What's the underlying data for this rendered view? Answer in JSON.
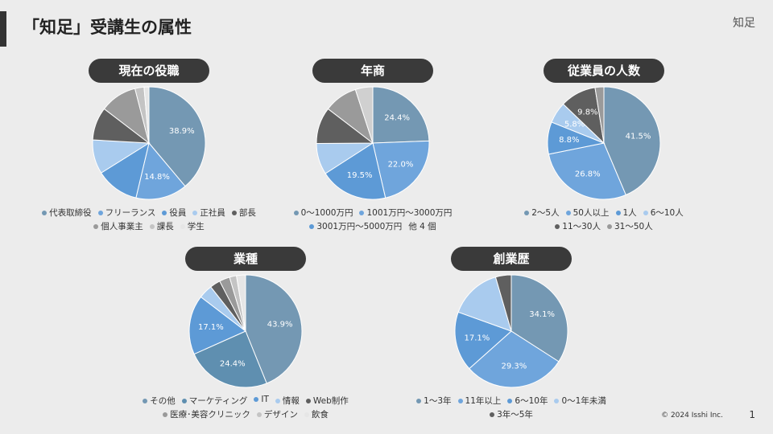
{
  "slide": {
    "title": "「知足」受講生の属性",
    "logo": "知足",
    "copyright": "© 2024 Isshi Inc.",
    "page": "1"
  },
  "chart_data": [
    {
      "type": "pie",
      "title": "現在の役職",
      "categories": [
        "代表取締役",
        "フリーランス",
        "役員",
        "正社員",
        "部長",
        "個人事業主",
        "課長",
        "学生"
      ],
      "values": [
        38.9,
        14.8,
        12.4,
        9.8,
        9.5,
        10.6,
        2.6,
        1.4
      ],
      "value_labels": [
        "38.9%",
        "14.8%",
        null,
        null,
        null,
        null,
        null,
        null
      ],
      "colors": [
        "#7498b3",
        "#6fa5dc",
        "#5d9ad6",
        "#a9cbee",
        "#5f5f5f",
        "#9a9a9a",
        "#c4c4c4",
        "#e6e6e6"
      ]
    },
    {
      "type": "pie",
      "title": "年商",
      "categories": [
        "0〜1000万円",
        "1001万円〜3000万円",
        "3001万円〜5000万円",
        null,
        null,
        null,
        null
      ],
      "values": [
        24.4,
        22.0,
        19.5,
        9.0,
        10.5,
        9.6,
        5.0
      ],
      "value_labels": [
        "24.4%",
        "22.0%",
        "19.5%",
        null,
        null,
        null,
        null
      ],
      "legend_more": "他 4 個",
      "colors": [
        "#7498b3",
        "#6fa5dc",
        "#5d9ad6",
        "#a9cbee",
        "#5f5f5f",
        "#9a9a9a",
        "#d0d0d0"
      ]
    },
    {
      "type": "pie",
      "title": "従業員の人数",
      "categories": [
        "2〜5人",
        "50人以上",
        "1人",
        "6〜10人",
        "11〜30人",
        "31〜50人"
      ],
      "values": [
        41.5,
        26.8,
        8.8,
        5.8,
        9.8,
        2.4
      ],
      "value_labels": [
        "41.5%",
        "26.8%",
        "8.8%",
        "5.8%",
        "9.8%",
        null
      ],
      "colors": [
        "#7498b3",
        "#6fa5dc",
        "#5d9ad6",
        "#a9cbee",
        "#5f5f5f",
        "#9a9a9a"
      ]
    },
    {
      "type": "pie",
      "title": "業種",
      "categories": [
        "その他",
        "マーケティング",
        "IT",
        "情報",
        "Web制作",
        "医療･美容クリニック",
        "デザイン",
        "飲食"
      ],
      "values": [
        43.9,
        24.4,
        17.1,
        4.0,
        3.0,
        3.0,
        2.0,
        2.6
      ],
      "value_labels": [
        "43.9%",
        "24.4%",
        "17.1%",
        null,
        null,
        null,
        null,
        null
      ],
      "colors": [
        "#7498b3",
        "#5f8fb0",
        "#5d9ad6",
        "#a9cbee",
        "#5f5f5f",
        "#9a9a9a",
        "#c4c4c4",
        "#e6e6e6"
      ]
    },
    {
      "type": "pie",
      "title": "創業歴",
      "categories": [
        "1〜3年",
        "11年以上",
        "6〜10年",
        "0〜1年未満",
        "3年〜5年"
      ],
      "values": [
        34.1,
        29.3,
        17.1,
        15.0,
        4.5
      ],
      "value_labels": [
        "34.1%",
        "29.3%",
        "17.1%",
        null,
        null
      ],
      "colors": [
        "#7498b3",
        "#6fa5dc",
        "#5d9ad6",
        "#a9cbee",
        "#5f5f5f"
      ]
    }
  ]
}
